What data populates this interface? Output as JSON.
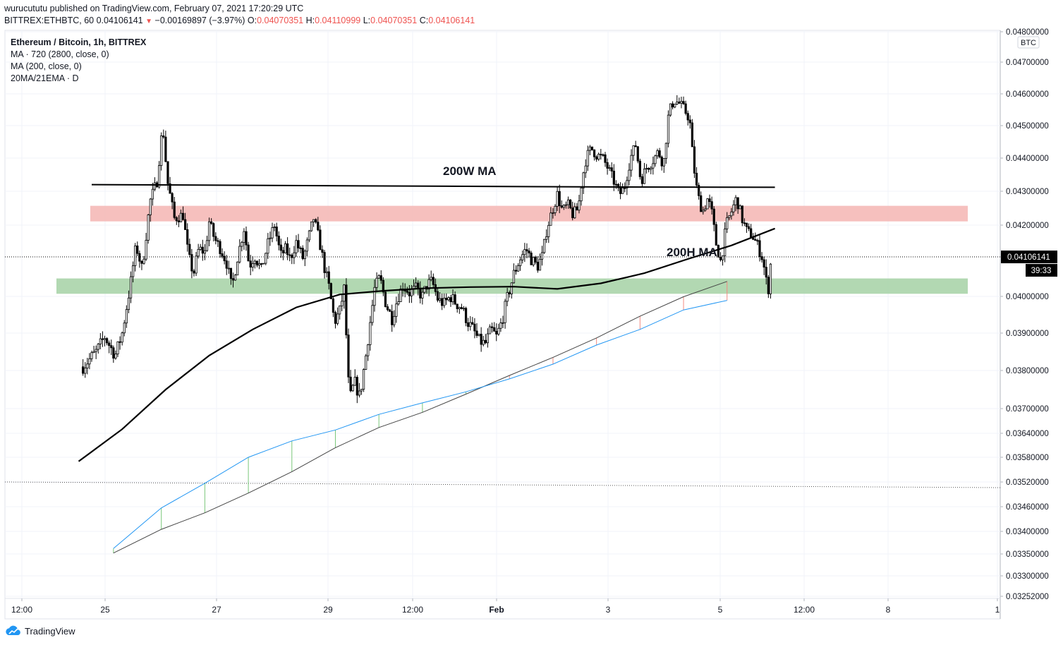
{
  "header": {
    "published": "wurucututu published on TradingView.com, February 07, 2021 17:20:29 UTC",
    "symbol": "BITTREX:ETHBTC, 60",
    "last": "0.04106141",
    "change": "−0.00169897 (−3.97%)",
    "o_label": "O:",
    "o_value": "0.04070351",
    "h_label": "H:",
    "h_value": "0.04110999",
    "l_label": "L:",
    "l_value": "0.04070351",
    "c_label": "C:",
    "c_value": "0.04106141"
  },
  "legend": {
    "title": "Ethereum / Bitcoin, 1h, BITTREX",
    "ma1": "MA · 720 (2800, close, 0)",
    "ma2": "MA (200, close, 0)",
    "ma3": "20MA/21EMA · D"
  },
  "footer": {
    "brand": "TradingView"
  },
  "colors": {
    "candle": "#000000",
    "resistance_zone": "#f5b5b3",
    "support_zone": "#a5d1a5",
    "ema_daily": "#2196f3",
    "ma_daily": "#444444",
    "ma200h": "#000000",
    "ma200w": "#000000",
    "price_label_bg": "#000000"
  },
  "chart_data": {
    "type": "candlestick",
    "title": "Ethereum / Bitcoin, 1h, BITTREX",
    "currency_badge": "BTC",
    "y_axis_ticks": [
      "0.04800000",
      "0.04700000",
      "0.04600000",
      "0.04500000",
      "0.04400000",
      "0.04300000",
      "0.04200000",
      "0.04000000",
      "0.03900000",
      "0.03800000",
      "0.03700000",
      "0.03640000",
      "0.03580000",
      "0.03520000",
      "0.03460000",
      "0.03400000",
      "0.03350000",
      "0.03300000",
      "0.03252000"
    ],
    "x_axis_ticks": [
      "12:00",
      "25",
      "27",
      "29",
      "12:00",
      "Feb",
      "3",
      "5",
      "12:00",
      "8",
      "1"
    ],
    "last_price": "0.04106141",
    "countdown": "39:33",
    "annotations": [
      "200W MA",
      "200H MA"
    ],
    "price_path": [
      [
        0.5,
        0.0381
      ],
      [
        2,
        0.0385
      ],
      [
        3,
        0.0389
      ],
      [
        4.2,
        0.0384
      ],
      [
        5,
        0.039
      ],
      [
        6,
        0.0404
      ],
      [
        6.6,
        0.0414
      ],
      [
        7.3,
        0.0407
      ],
      [
        8.2,
        0.0427
      ],
      [
        9,
        0.0433
      ],
      [
        9.5,
        0.0446
      ],
      [
        9.7,
        0.0449
      ],
      [
        10.2,
        0.0433
      ],
      [
        11,
        0.0422
      ],
      [
        12,
        0.0423
      ],
      [
        12.6,
        0.0411
      ],
      [
        13.2,
        0.0406
      ],
      [
        13.8,
        0.0413
      ],
      [
        14.5,
        0.0412
      ],
      [
        15,
        0.0421
      ],
      [
        15.6,
        0.0416
      ],
      [
        16.3,
        0.0413
      ],
      [
        17,
        0.0409
      ],
      [
        17.6,
        0.0402
      ],
      [
        18.2,
        0.041
      ],
      [
        19,
        0.0419
      ],
      [
        19.6,
        0.0408
      ],
      [
        20.2,
        0.0411
      ],
      [
        21,
        0.0407
      ],
      [
        21.8,
        0.0415
      ],
      [
        22.5,
        0.042
      ],
      [
        23.2,
        0.0411
      ],
      [
        23.8,
        0.0413
      ],
      [
        24.3,
        0.041
      ],
      [
        25,
        0.0415
      ],
      [
        25.8,
        0.041
      ],
      [
        26.5,
        0.0417
      ],
      [
        27,
        0.0422
      ],
      [
        27.6,
        0.0416
      ],
      [
        28.3,
        0.0407
      ],
      [
        28.8,
        0.0402
      ],
      [
        29.4,
        0.0393
      ],
      [
        30,
        0.0396
      ],
      [
        30.5,
        0.0402
      ],
      [
        31.1,
        0.0372
      ],
      [
        31.7,
        0.0377
      ],
      [
        32.3,
        0.0373
      ],
      [
        33,
        0.0384
      ],
      [
        33.5,
        0.0393
      ],
      [
        34,
        0.0402
      ],
      [
        34.6,
        0.0405
      ],
      [
        35.3,
        0.0398
      ],
      [
        36,
        0.0394
      ],
      [
        36.7,
        0.04
      ],
      [
        37.3,
        0.0403
      ],
      [
        38,
        0.0401
      ],
      [
        38.8,
        0.0402
      ],
      [
        39.5,
        0.04
      ],
      [
        40,
        0.0403
      ],
      [
        40.6,
        0.0404
      ],
      [
        41.3,
        0.0399
      ],
      [
        42,
        0.0398
      ],
      [
        42.7,
        0.04
      ],
      [
        43.4,
        0.0398
      ],
      [
        44,
        0.0397
      ],
      [
        44.7,
        0.0393
      ],
      [
        45.3,
        0.0391
      ],
      [
        46,
        0.0388
      ],
      [
        46.7,
        0.0387
      ],
      [
        47.4,
        0.0391
      ],
      [
        48,
        0.0389
      ],
      [
        48.6,
        0.0393
      ],
      [
        49.3,
        0.04
      ],
      [
        50,
        0.0406
      ],
      [
        50.7,
        0.041
      ],
      [
        51.4,
        0.0413
      ],
      [
        52,
        0.041
      ],
      [
        52.7,
        0.0408
      ],
      [
        53.3,
        0.0411
      ],
      [
        53.8,
        0.0419
      ],
      [
        54.5,
        0.0425
      ],
      [
        55,
        0.0429
      ],
      [
        55.6,
        0.0424
      ],
      [
        56.2,
        0.0426
      ],
      [
        56.8,
        0.0423
      ],
      [
        57.4,
        0.0425
      ],
      [
        57.8,
        0.0433
      ],
      [
        58.3,
        0.044
      ],
      [
        58.9,
        0.0443
      ],
      [
        59.5,
        0.0441
      ],
      [
        60.2,
        0.044
      ],
      [
        60.8,
        0.0437
      ],
      [
        61.5,
        0.0433
      ],
      [
        62.1,
        0.0429
      ],
      [
        62.7,
        0.0431
      ],
      [
        63.4,
        0.044
      ],
      [
        64,
        0.0444
      ],
      [
        64.6,
        0.0433
      ],
      [
        65.2,
        0.0437
      ],
      [
        65.9,
        0.0439
      ],
      [
        66.6,
        0.0442
      ],
      [
        67.2,
        0.0438
      ],
      [
        67.8,
        0.0454
      ],
      [
        68.4,
        0.0458
      ],
      [
        69,
        0.0457
      ],
      [
        69.6,
        0.0455
      ],
      [
        70.2,
        0.0452
      ],
      [
        70.6,
        0.0439
      ],
      [
        71.1,
        0.0429
      ],
      [
        71.7,
        0.0424
      ],
      [
        72.3,
        0.0428
      ],
      [
        72.8,
        0.0423
      ],
      [
        73.2,
        0.0415
      ],
      [
        73.8,
        0.0409
      ],
      [
        74.4,
        0.042
      ],
      [
        75,
        0.0424
      ],
      [
        75.6,
        0.0428
      ],
      [
        76.2,
        0.0422
      ],
      [
        76.8,
        0.0418
      ],
      [
        77.4,
        0.0417
      ],
      [
        78,
        0.0414
      ],
      [
        78.6,
        0.041
      ],
      [
        79.2,
        0.0401
      ],
      [
        79.6,
        0.0411
      ]
    ],
    "series": [
      {
        "name": "MA (200, close, 0)",
        "points": [
          [
            0,
            0.0357
          ],
          [
            5,
            0.0365
          ],
          [
            10,
            0.0375
          ],
          [
            15,
            0.0384
          ],
          [
            20,
            0.0391
          ],
          [
            25,
            0.0397
          ],
          [
            30,
            0.04005
          ],
          [
            35,
            0.04015
          ],
          [
            40,
            0.04022
          ],
          [
            45,
            0.04025
          ],
          [
            50,
            0.04026
          ],
          [
            55,
            0.0402
          ],
          [
            60,
            0.04035
          ],
          [
            65,
            0.04062
          ],
          [
            70,
            0.041
          ],
          [
            75,
            0.0414
          ],
          [
            80,
            0.0419
          ]
        ]
      },
      {
        "name": "200W MA",
        "points": [
          [
            1.5,
            0.0432
          ],
          [
            60,
            0.04313
          ],
          [
            80,
            0.04312
          ]
        ]
      },
      {
        "name": "20MA/21EMA daily EMA",
        "points": [
          [
            4,
            0.03362
          ],
          [
            9.5,
            0.03457
          ],
          [
            14.5,
            0.03517
          ],
          [
            19.5,
            0.0358
          ],
          [
            24.5,
            0.03621
          ],
          [
            29.5,
            0.03648
          ],
          [
            34.5,
            0.03686
          ],
          [
            39.5,
            0.03715
          ],
          [
            44.5,
            0.03744
          ],
          [
            49.5,
            0.03778
          ],
          [
            54.5,
            0.03817
          ],
          [
            59.5,
            0.03868
          ],
          [
            64.5,
            0.0391
          ],
          [
            69.5,
            0.03963
          ],
          [
            74.5,
            0.03989
          ]
        ]
      },
      {
        "name": "20MA/21EMA daily MA",
        "points": [
          [
            4,
            0.03352
          ],
          [
            9.5,
            0.03405
          ],
          [
            14.5,
            0.03445
          ],
          [
            19.5,
            0.03493
          ],
          [
            24.5,
            0.03545
          ],
          [
            29.5,
            0.03604
          ],
          [
            34.5,
            0.03654
          ],
          [
            39.5,
            0.03691
          ],
          [
            44.5,
            0.03738
          ],
          [
            49.5,
            0.03787
          ],
          [
            54.5,
            0.03835
          ],
          [
            59.5,
            0.03887
          ],
          [
            64.5,
            0.03946
          ],
          [
            69.5,
            0.03999
          ],
          [
            74.5,
            0.0404
          ]
        ]
      }
    ],
    "zones": [
      {
        "name": "resistance",
        "from": 0.04211,
        "to": 0.04257
      },
      {
        "name": "support",
        "from": 0.04007,
        "to": 0.04048
      }
    ],
    "horizontal_lines": [
      0.04106141,
      0.03516
    ],
    "grid": true
  }
}
